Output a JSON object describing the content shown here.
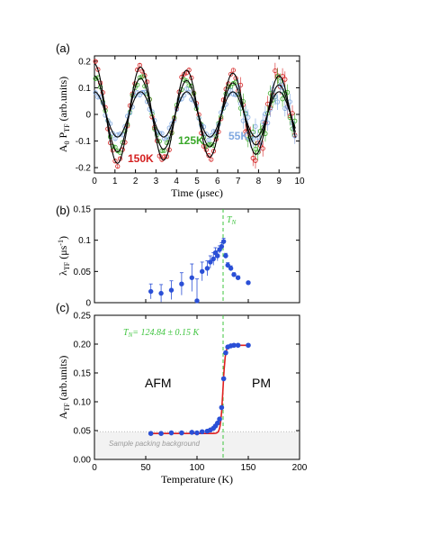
{
  "colors": {
    "c150": "#d42020",
    "c125": "#3aa82a",
    "c55": "#7fa8e0",
    "fit": "#000000",
    "points": "#2a4fd6",
    "tn_line": "#3ec43e",
    "fit_c": "#e02020",
    "bg_fill": "#f2f2f2"
  },
  "chart_data": [
    {
      "panel": "(a)",
      "type": "line",
      "xlabel": "Time (μsec)",
      "ylabel": "A0 PTF (arb.units)",
      "xlim": [
        0,
        10
      ],
      "ylim": [
        -0.22,
        0.22
      ],
      "xticks": [
        "0",
        "1",
        "2",
        "3",
        "4",
        "5",
        "6",
        "7",
        "8",
        "9",
        "10"
      ],
      "yticks": [
        "0.2",
        "0.1",
        "0",
        "-0.1",
        "-0.2"
      ],
      "series": [
        {
          "name": "150K",
          "amplitude": 0.19,
          "period_us": 2.25,
          "damping_per_us": 0.03
        },
        {
          "name": "125K",
          "amplitude": 0.145,
          "period_us": 2.25,
          "damping_per_us": 0.03
        },
        {
          "name": "55K",
          "amplitude": 0.085,
          "period_us": 2.25,
          "damping_per_us": 0.0
        }
      ],
      "annotations": [
        "150K",
        "125K",
        "55K"
      ]
    },
    {
      "panel": "(b)",
      "type": "scatter",
      "xlabel": "",
      "ylabel": "λTF (μs-1)",
      "xlim": [
        0,
        200
      ],
      "ylim": [
        0,
        0.15
      ],
      "yticks": [
        "0.15",
        "0.1",
        "0.05",
        "0"
      ],
      "tn_label": "T",
      "tn_sub": "N",
      "points": [
        {
          "x": 55,
          "y": 0.018,
          "err": 0.012
        },
        {
          "x": 65,
          "y": 0.015,
          "err": 0.014
        },
        {
          "x": 75,
          "y": 0.02,
          "err": 0.015
        },
        {
          "x": 85,
          "y": 0.03,
          "err": 0.018
        },
        {
          "x": 95,
          "y": 0.04,
          "err": 0.022
        },
        {
          "x": 100,
          "y": 0.003,
          "err": 0.035
        },
        {
          "x": 105,
          "y": 0.05,
          "err": 0.015
        },
        {
          "x": 110,
          "y": 0.055,
          "err": 0.012
        },
        {
          "x": 113,
          "y": 0.065,
          "err": 0.01
        },
        {
          "x": 116,
          "y": 0.07,
          "err": 0.01
        },
        {
          "x": 118,
          "y": 0.08,
          "err": 0.008
        },
        {
          "x": 120,
          "y": 0.075,
          "err": 0.008
        },
        {
          "x": 122,
          "y": 0.085,
          "err": 0.006
        },
        {
          "x": 124,
          "y": 0.09,
          "err": 0.006
        },
        {
          "x": 126,
          "y": 0.098,
          "err": 0.005
        },
        {
          "x": 128,
          "y": 0.075,
          "err": 0.004
        },
        {
          "x": 130,
          "y": 0.06,
          "err": 0.004
        },
        {
          "x": 133,
          "y": 0.055,
          "err": 0.004
        },
        {
          "x": 136,
          "y": 0.045,
          "err": 0.003
        },
        {
          "x": 140,
          "y": 0.04,
          "err": 0.003
        },
        {
          "x": 150,
          "y": 0.032,
          "err": 0.002
        }
      ]
    },
    {
      "panel": "(c)",
      "type": "scatter",
      "xlabel": "Temperature (K)",
      "ylabel": "ATF (arb.units)",
      "xlim": [
        0,
        200
      ],
      "ylim": [
        0,
        0.25
      ],
      "xticks": [
        "0",
        "50",
        "100",
        "150",
        "200"
      ],
      "yticks": [
        "0.25",
        "0.20",
        "0.15",
        "0.10",
        "0.05",
        "0.00"
      ],
      "tn_text": "= 124.84 ± 0.15 K",
      "labels": {
        "afm": "AFM",
        "pm": "PM",
        "background": "Sample packing background"
      },
      "background_level": 0.048,
      "points": [
        {
          "x": 55,
          "y": 0.045
        },
        {
          "x": 65,
          "y": 0.045
        },
        {
          "x": 75,
          "y": 0.046
        },
        {
          "x": 85,
          "y": 0.046
        },
        {
          "x": 95,
          "y": 0.047
        },
        {
          "x": 100,
          "y": 0.046
        },
        {
          "x": 105,
          "y": 0.048
        },
        {
          "x": 110,
          "y": 0.049
        },
        {
          "x": 113,
          "y": 0.051
        },
        {
          "x": 116,
          "y": 0.054
        },
        {
          "x": 118,
          "y": 0.058
        },
        {
          "x": 120,
          "y": 0.063
        },
        {
          "x": 122,
          "y": 0.07
        },
        {
          "x": 124,
          "y": 0.09
        },
        {
          "x": 126,
          "y": 0.14
        },
        {
          "x": 128,
          "y": 0.185
        },
        {
          "x": 130,
          "y": 0.195
        },
        {
          "x": 133,
          "y": 0.197
        },
        {
          "x": 136,
          "y": 0.198
        },
        {
          "x": 140,
          "y": 0.198
        },
        {
          "x": 150,
          "y": 0.198
        }
      ]
    }
  ]
}
